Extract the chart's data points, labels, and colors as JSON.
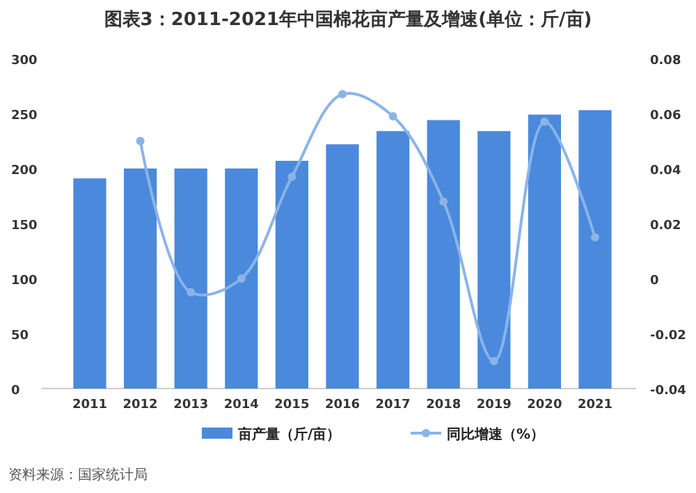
{
  "chart_data": {
    "type": "bar",
    "title": "图表3：2011-2021年中国棉花亩产量及增速(单位：斤/亩)",
    "categories": [
      "2011",
      "2012",
      "2013",
      "2014",
      "2015",
      "2016",
      "2017",
      "2018",
      "2019",
      "2020",
      "2021"
    ],
    "series": [
      {
        "name": "亩产量（斤/亩）",
        "color": "#4a89dc",
        "values": [
          191,
          200,
          200,
          200,
          207,
          222,
          234,
          244,
          234,
          249,
          253
        ]
      },
      {
        "name": "同比增速（%）",
        "type": "line",
        "axis": "y2",
        "color": "#8ab4e8",
        "values": [
          null,
          0.05,
          -0.005,
          0,
          0.037,
          0.067,
          0.059,
          0.028,
          -0.03,
          0.057,
          0.015
        ]
      }
    ],
    "ylim": [
      0,
      300
    ],
    "yticks": [
      0,
      50,
      100,
      150,
      200,
      250,
      300
    ],
    "y2lim": [
      -0.04,
      0.08
    ],
    "y2ticks": [
      -0.04,
      -0.02,
      0,
      0.02,
      0.04,
      0.06,
      0.08
    ],
    "marker": "circle",
    "legend": "bottom",
    "annotations": [
      "资料来源：国家统计局"
    ]
  }
}
